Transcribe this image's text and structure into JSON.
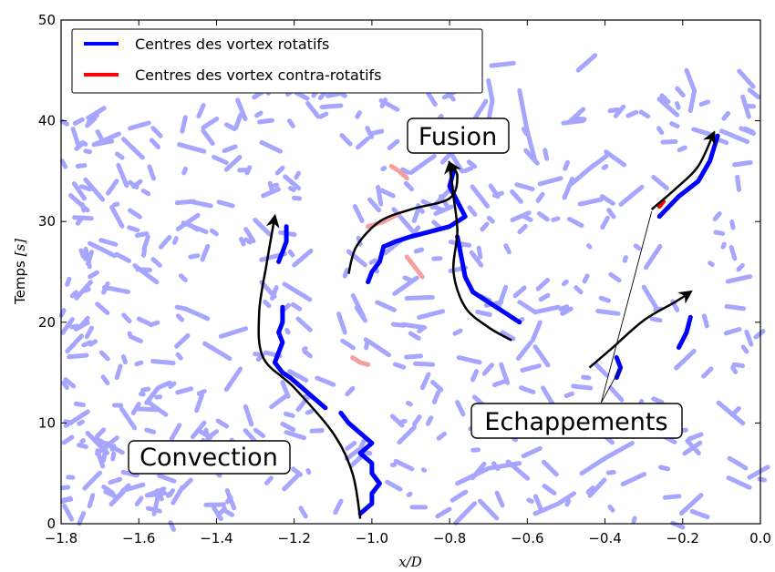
{
  "chart_data": {
    "type": "scatter",
    "title": "",
    "xlabel": "x/D",
    "ylabel_prefix": "Temps ",
    "ylabel_unit": "[s]",
    "xlim": [
      -1.8,
      0.0
    ],
    "ylim": [
      0,
      50
    ],
    "x_ticks": [
      -1.8,
      -1.6,
      -1.4,
      -1.2,
      -1.0,
      -0.8,
      -0.6,
      -0.4,
      -0.2,
      0.0
    ],
    "x_tick_labels": [
      "−1.8",
      "−1.6",
      "−1.4",
      "−1.2",
      "−1.0",
      "−0.8",
      "−0.6",
      "−0.4",
      "−0.2",
      "0.0"
    ],
    "y_ticks": [
      0,
      10,
      20,
      30,
      40,
      50
    ],
    "y_tick_labels": [
      "0",
      "10",
      "20",
      "30",
      "40",
      "50"
    ],
    "grid": false,
    "legend": {
      "placement": "top-left",
      "entries": [
        {
          "label": "Centres des vortex rotatifs",
          "color": "#0000ff"
        },
        {
          "label": "Centres des vortex contra-rotatifs",
          "color": "#ff0000"
        }
      ]
    },
    "colors": {
      "rotatifs": "#0000ff",
      "contra_rotatifs": "#ff0000",
      "rotatifs_faded": "#a6a6ff",
      "contra_rotatifs_faded": "#f4a0a0"
    },
    "highlighted_tracks": [
      {
        "series": "rotatifs",
        "points": [
          [
            -1.03,
            1.0
          ],
          [
            -1.0,
            2.0
          ],
          [
            -1.0,
            3.0
          ],
          [
            -0.98,
            4.0
          ],
          [
            -1.0,
            5.0
          ],
          [
            -1.0,
            6.0
          ],
          [
            -1.03,
            7.0
          ],
          [
            -1.0,
            8.0
          ],
          [
            -1.03,
            9.0
          ],
          [
            -1.06,
            10.0
          ],
          [
            -1.08,
            11.0
          ]
        ]
      },
      {
        "series": "rotatifs",
        "points": [
          [
            -1.12,
            11.5
          ],
          [
            -1.15,
            12.5
          ],
          [
            -1.18,
            13.5
          ],
          [
            -1.21,
            14.5
          ],
          [
            -1.23,
            15.0
          ],
          [
            -1.25,
            16.0
          ],
          [
            -1.24,
            17.0
          ],
          [
            -1.23,
            18.0
          ],
          [
            -1.24,
            19.0
          ],
          [
            -1.23,
            20.0
          ],
          [
            -1.23,
            21.5
          ]
        ]
      },
      {
        "series": "rotatifs",
        "points": [
          [
            -1.24,
            26.0
          ],
          [
            -1.23,
            27.0
          ],
          [
            -1.22,
            28.0
          ],
          [
            -1.22,
            29.5
          ]
        ]
      },
      {
        "series": "rotatifs",
        "points": [
          [
            -1.01,
            24.0
          ],
          [
            -1.0,
            25.0
          ],
          [
            -0.98,
            26.0
          ],
          [
            -0.97,
            27.5
          ],
          [
            -0.94,
            28.0
          ],
          [
            -0.9,
            28.5
          ],
          [
            -0.85,
            29.0
          ],
          [
            -0.8,
            29.5
          ],
          [
            -0.76,
            30.5
          ],
          [
            -0.78,
            32.0
          ],
          [
            -0.8,
            33.5
          ],
          [
            -0.79,
            35.0
          ]
        ]
      },
      {
        "series": "rotatifs",
        "points": [
          [
            -0.78,
            28.5
          ],
          [
            -0.77,
            26.5
          ],
          [
            -0.76,
            24.5
          ],
          [
            -0.74,
            23.0
          ],
          [
            -0.7,
            22.0
          ],
          [
            -0.66,
            21.0
          ],
          [
            -0.62,
            20.0
          ]
        ]
      },
      {
        "series": "rotatifs",
        "points": [
          [
            -0.37,
            14.5
          ],
          [
            -0.36,
            15.5
          ],
          [
            -0.37,
            16.5
          ]
        ]
      },
      {
        "series": "rotatifs",
        "points": [
          [
            -0.21,
            17.5
          ],
          [
            -0.19,
            19.0
          ],
          [
            -0.18,
            20.5
          ]
        ]
      },
      {
        "series": "rotatifs",
        "points": [
          [
            -0.26,
            30.5
          ],
          [
            -0.21,
            32.5
          ],
          [
            -0.16,
            34.0
          ],
          [
            -0.13,
            36.0
          ],
          [
            -0.11,
            38.5
          ]
        ]
      },
      {
        "series": "contra_rotatifs",
        "points": [
          [
            -0.26,
            31.5
          ],
          [
            -0.25,
            32.0
          ]
        ]
      }
    ],
    "annotations": [
      {
        "text": "Convection",
        "x": -1.51,
        "y": 6.6
      },
      {
        "text": "Fusion",
        "x": -0.83,
        "y": 38.6
      },
      {
        "text": "Echappements",
        "x": -0.34,
        "y": 10.2
      }
    ],
    "annotation_arrows": [
      {
        "points": [
          [
            -1.03,
            0.5
          ],
          [
            -1.05,
            5
          ],
          [
            -1.1,
            9
          ],
          [
            -1.2,
            13.5
          ],
          [
            -1.28,
            16.5
          ],
          [
            -1.29,
            21
          ],
          [
            -1.27,
            26
          ],
          [
            -1.25,
            30.5
          ]
        ]
      },
      {
        "points": [
          [
            -1.06,
            24.8
          ],
          [
            -1.04,
            27.5
          ],
          [
            -0.98,
            30
          ],
          [
            -0.9,
            31.2
          ],
          [
            -0.8,
            32.3
          ],
          [
            -0.78,
            34.5
          ],
          [
            -0.8,
            35.8
          ]
        ]
      },
      {
        "points": [
          [
            -0.64,
            18.2
          ],
          [
            -0.7,
            19.5
          ],
          [
            -0.76,
            21.5
          ],
          [
            -0.79,
            25
          ],
          [
            -0.78,
            29
          ],
          [
            -0.79,
            32.5
          ],
          [
            -0.8,
            35.8
          ]
        ]
      },
      {
        "points": [
          [
            -0.44,
            15.5
          ],
          [
            -0.38,
            17.5
          ],
          [
            -0.3,
            20.2
          ],
          [
            -0.22,
            22
          ],
          [
            -0.18,
            23
          ]
        ]
      },
      {
        "points": [
          [
            -0.28,
            31.2
          ],
          [
            -0.22,
            33.2
          ],
          [
            -0.16,
            35.5
          ],
          [
            -0.12,
            38.8
          ]
        ]
      }
    ],
    "leader_lines": [
      {
        "from": [
          -0.41,
          12.0
        ],
        "to": [
          -0.28,
          31.0
        ]
      },
      {
        "from": [
          -0.41,
          12.0
        ],
        "to": [
          -0.36,
          15.5
        ]
      }
    ]
  }
}
